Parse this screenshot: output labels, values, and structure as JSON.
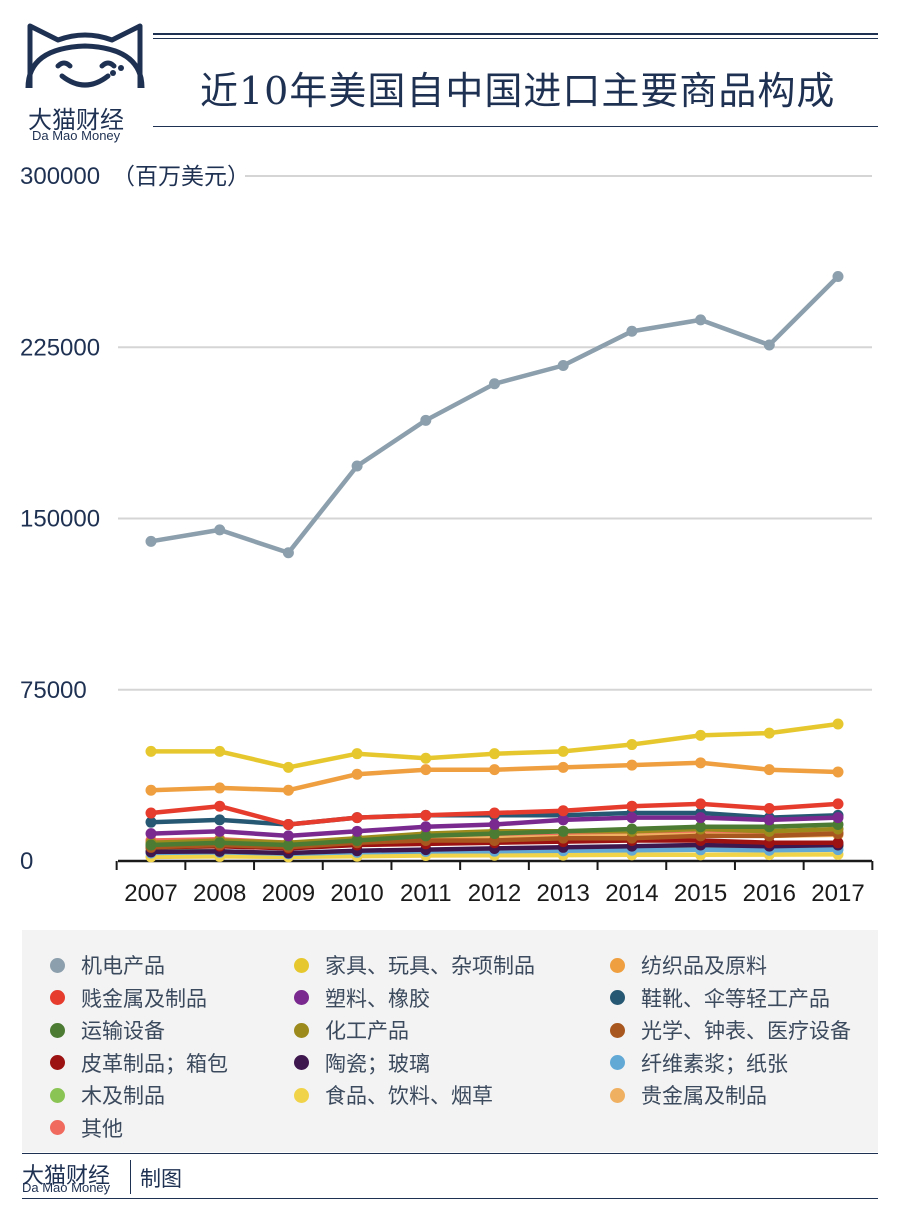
{
  "brand": {
    "name_cn": "大猫财经",
    "name_en": "Da Mao Money"
  },
  "footer": {
    "credit": "制图"
  },
  "colors": {
    "navy": "#1f3152",
    "grid": "#d5d5d5",
    "legend_bg": "#f3f3f3"
  },
  "chart_data": {
    "type": "line",
    "title": "近10年美国自中国进口主要商品构成",
    "ylabel": "（百万美元）",
    "ylim": [
      0,
      300000
    ],
    "yticks": [
      0,
      75000,
      150000,
      225000,
      300000
    ],
    "ytick_labels": [
      "0",
      "75000",
      "150000",
      "225000",
      "300000"
    ],
    "x": [
      "2007",
      "2008",
      "2009",
      "2010",
      "2011",
      "2012",
      "2013",
      "2014",
      "2015",
      "2016",
      "2017"
    ],
    "grid": true,
    "legend_position": "bottom",
    "series": [
      {
        "name": "机电产品",
        "color": "#8c9fac",
        "values": [
          140000,
          145000,
          135000,
          173000,
          193000,
          209000,
          217000,
          232000,
          237000,
          226000,
          256000
        ]
      },
      {
        "name": "家具、玩具、杂项制品",
        "color": "#e6c82e",
        "values": [
          48000,
          48000,
          41000,
          47000,
          45000,
          47000,
          48000,
          51000,
          55000,
          56000,
          60000
        ]
      },
      {
        "name": "纺织品及原料",
        "color": "#ef9f3f",
        "values": [
          31000,
          32000,
          31000,
          38000,
          40000,
          40000,
          41000,
          42000,
          43000,
          40000,
          39000
        ]
      },
      {
        "name": "贱金属及制品",
        "color": "#e53c2e",
        "values": [
          21000,
          24000,
          16000,
          19000,
          20000,
          21000,
          22000,
          24000,
          25000,
          23000,
          25000
        ]
      },
      {
        "name": "塑料、橡胶",
        "color": "#7a2a8e",
        "values": [
          12000,
          13000,
          11000,
          13000,
          15000,
          16000,
          18000,
          19000,
          19000,
          18000,
          19000
        ]
      },
      {
        "name": "鞋靴、伞等轻工产品",
        "color": "#275873",
        "values": [
          17000,
          18000,
          16000,
          19000,
          20000,
          20000,
          20000,
          21000,
          21000,
          19000,
          20000
        ]
      },
      {
        "name": "运输设备",
        "color": "#4c7c33",
        "values": [
          7000,
          8000,
          7000,
          9000,
          11000,
          12000,
          13000,
          14000,
          15000,
          15000,
          16000
        ]
      },
      {
        "name": "化工产品",
        "color": "#9c8a1d",
        "values": [
          8000,
          9000,
          8000,
          10000,
          12000,
          13000,
          13000,
          13000,
          14000,
          13000,
          14000
        ]
      },
      {
        "name": "光学、钟表、医疗设备",
        "color": "#a8581e",
        "values": [
          6000,
          7000,
          6000,
          8000,
          9000,
          9000,
          10000,
          10000,
          11000,
          11000,
          12000
        ]
      },
      {
        "name": "皮革制品；箱包",
        "color": "#9c1212",
        "values": [
          6000,
          6500,
          5500,
          7000,
          7500,
          8000,
          8500,
          9000,
          9000,
          8000,
          8000
        ]
      },
      {
        "name": "陶瓷；玻璃",
        "color": "#3f174f",
        "values": [
          4000,
          4200,
          3500,
          4500,
          5000,
          5500,
          6000,
          6500,
          7000,
          6500,
          7000
        ]
      },
      {
        "name": "纤维素浆；纸张",
        "color": "#62a9d6",
        "values": [
          3500,
          3800,
          3200,
          3800,
          4200,
          4300,
          4500,
          4700,
          4900,
          4700,
          5000
        ]
      },
      {
        "name": "木及制品",
        "color": "#8ac454",
        "values": [
          4500,
          4300,
          3200,
          4000,
          4200,
          4600,
          5200,
          5800,
          6200,
          6000,
          6500
        ]
      },
      {
        "name": "食品、饮料、烟草",
        "color": "#f1d34a",
        "values": [
          1800,
          2000,
          1800,
          2100,
          2400,
          2500,
          2600,
          2700,
          2700,
          2800,
          2900
        ]
      },
      {
        "name": "贵金属及制品",
        "color": "#f0b061",
        "values": [
          7000,
          7500,
          6500,
          8000,
          9500,
          10000,
          10500,
          11000,
          11500,
          11000,
          11500
        ]
      },
      {
        "name": "其他",
        "color": "#f06a5e",
        "values": [
          9000,
          9500,
          8000,
          9000,
          10000,
          10500,
          11000,
          11500,
          12000,
          12000,
          12500
        ]
      }
    ]
  }
}
